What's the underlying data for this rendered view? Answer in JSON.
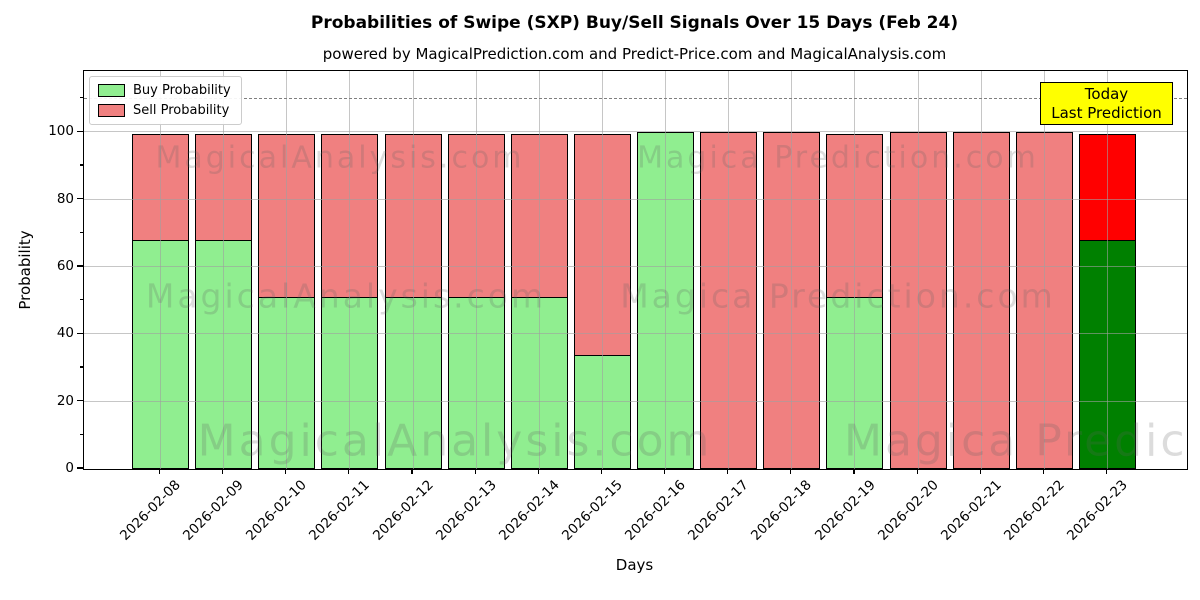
{
  "title": "Probabilities of Swipe (SXP) Buy/Sell Signals Over 15 Days (Feb 24)",
  "subtitle": "powered by MagicalPrediction.com and Predict-Price.com and MagicalAnalysis.com",
  "legend": {
    "items": [
      {
        "label": "Buy Probability",
        "color": "#90ee90"
      },
      {
        "label": "Sell Probability",
        "color": "#f08080"
      }
    ]
  },
  "annotation": {
    "line1": "Today",
    "line2": "Last Prediction",
    "bg_color": "#ffff00"
  },
  "watermark": {
    "left_text": "MagicalAnalysis.com",
    "right_text": "Magica Prediction.com"
  },
  "chart_data": {
    "type": "bar",
    "stacked": true,
    "title": "Probabilities of Swipe (SXP) Buy/Sell Signals Over 15 Days (Feb 24)",
    "xlabel": "Days",
    "ylabel": "Probability",
    "categories": [
      "2026-02-08",
      "2026-02-09",
      "2026-02-10",
      "2026-02-11",
      "2026-02-12",
      "2026-02-13",
      "2026-02-14",
      "2026-02-15",
      "2026-02-16",
      "2026-02-17",
      "2026-02-18",
      "2026-02-19",
      "2026-02-20",
      "2026-02-21",
      "2026-02-22",
      "2026-02-23"
    ],
    "series": [
      {
        "name": "Buy Probability",
        "color": "#90ee90",
        "values": [
          68,
          68,
          51,
          51,
          51,
          51,
          51,
          34,
          100,
          0,
          0,
          51,
          0,
          0,
          0,
          68
        ]
      },
      {
        "name": "Sell Probability",
        "color": "#f08080",
        "values": [
          32,
          32,
          49,
          49,
          49,
          49,
          49,
          66,
          0,
          100,
          100,
          49,
          100,
          100,
          100,
          32
        ]
      }
    ],
    "last_bar_colors": {
      "buy": "#008000",
      "sell": "#ff0000"
    },
    "yticks": [
      0,
      20,
      40,
      60,
      80,
      100
    ],
    "minor_yticks": [
      10,
      30,
      50,
      70,
      90,
      110
    ],
    "ylim": [
      0,
      118
    ],
    "dashed_line_y": 110,
    "grid": true,
    "legend_position": "upper left",
    "bar_edge_color": "#000000"
  }
}
